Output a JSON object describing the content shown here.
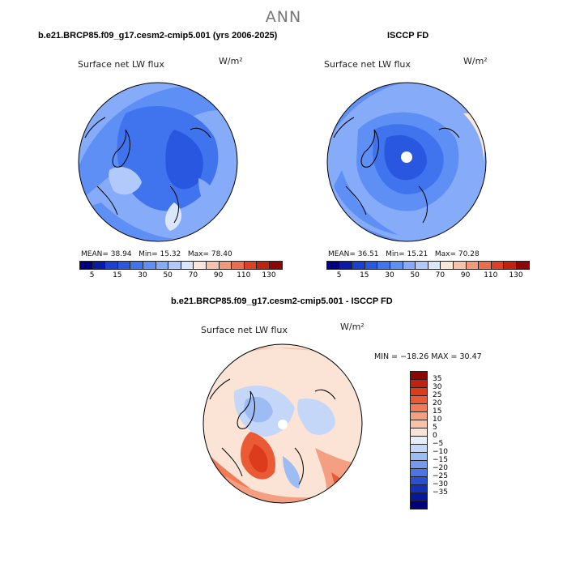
{
  "season": "ANN",
  "panels": {
    "model": {
      "title": "b.e21.BRCP85.f09_g17.cesm2-cmip5.001 (yrs 2006-2025)",
      "variable": "Surface net LW flux",
      "units": "W/m²",
      "mean_label": "MEAN=",
      "mean": "38.94",
      "min_label": "Min=",
      "min": "15.32",
      "max_label": "Max=",
      "max": "78.40"
    },
    "obs": {
      "title": "ISCCP FD",
      "variable": "Surface net LW flux",
      "units": "W/m²",
      "mean_label": "MEAN=",
      "mean": "36.51",
      "min_label": "Min=",
      "min": "15.21",
      "max_label": "Max=",
      "max": "70.28"
    },
    "diff": {
      "title": "b.e21.BRCP85.f09_g17.cesm2-cmip5.001 - ISCCP FD",
      "variable": "Surface net LW flux",
      "units": "W/m²",
      "minmax": "MIN = −18.26 MAX =  30.47"
    }
  },
  "colorbar_abs": {
    "colors": [
      "#00007f",
      "#0a1aa8",
      "#1b3fcf",
      "#2a57e0",
      "#3f74ee",
      "#5e8ff5",
      "#86abf9",
      "#b2cafb",
      "#d9e6fb",
      "#fbe6da",
      "#f7c2aa",
      "#f19a7a",
      "#e96d4f",
      "#dc4127",
      "#c1210f",
      "#8e0505"
    ],
    "labels": [
      "5",
      "15",
      "30",
      "50",
      "70",
      "90",
      "110",
      "130"
    ]
  },
  "colorbar_diff": {
    "colors": [
      "#8e0505",
      "#c1210f",
      "#dc3b1c",
      "#ea5a35",
      "#f17a57",
      "#f59f82",
      "#f8c2aa",
      "#fbe4d6",
      "#e7eefb",
      "#c5d7f8",
      "#9dbcf4",
      "#7699ee",
      "#4d74e4",
      "#2a50d2",
      "#1430b6",
      "#07179a",
      "#00007f"
    ],
    "labels": [
      "35",
      "30",
      "25",
      "20",
      "15",
      "10",
      "5",
      "0",
      "−5",
      "−10",
      "−15",
      "−20",
      "−25",
      "−30",
      "−35"
    ]
  },
  "icons": {
    "pole_marker": "white-dot-icon"
  }
}
